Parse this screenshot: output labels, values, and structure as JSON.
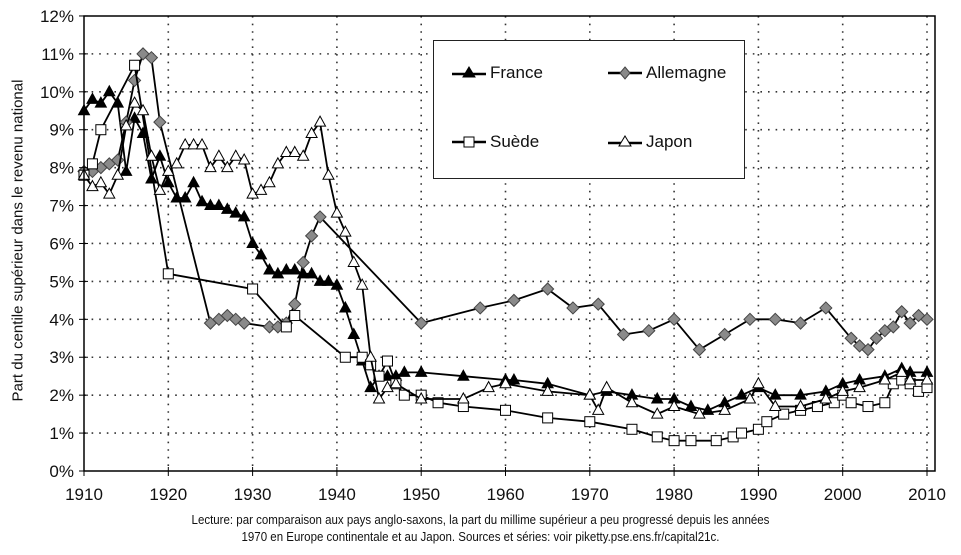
{
  "chart_data": {
    "type": "line",
    "title": "",
    "ylabel": "Part du centile supérieur dans le revenu national",
    "xlabel": "",
    "xlim": [
      1910,
      2010
    ],
    "ylim": [
      0,
      12
    ],
    "x_ticks": [
      "1910",
      "1920",
      "1930",
      "1940",
      "1950",
      "1960",
      "1970",
      "1980",
      "1990",
      "2000",
      "2010"
    ],
    "y_ticks": [
      "0%",
      "1%",
      "2%",
      "3%",
      "4%",
      "5%",
      "6%",
      "7%",
      "8%",
      "9%",
      "10%",
      "11%",
      "12%"
    ],
    "grid": true,
    "legend_position": "upper-right (inside)",
    "series": [
      {
        "name": "France",
        "marker": "filled-triangle",
        "color": "#000000",
        "points": [
          [
            1910,
            9.5
          ],
          [
            1911,
            9.8
          ],
          [
            1912,
            9.7
          ],
          [
            1913,
            10.0
          ],
          [
            1914,
            9.7
          ],
          [
            1915,
            7.9
          ],
          [
            1916,
            9.3
          ],
          [
            1917,
            8.9
          ],
          [
            1918,
            7.7
          ],
          [
            1919,
            8.3
          ],
          [
            1920,
            7.6
          ],
          [
            1921,
            7.2
          ],
          [
            1922,
            7.2
          ],
          [
            1923,
            7.6
          ],
          [
            1924,
            7.1
          ],
          [
            1925,
            7.0
          ],
          [
            1926,
            7.0
          ],
          [
            1927,
            6.9
          ],
          [
            1928,
            6.8
          ],
          [
            1929,
            6.7
          ],
          [
            1930,
            6.0
          ],
          [
            1931,
            5.7
          ],
          [
            1932,
            5.3
          ],
          [
            1933,
            5.2
          ],
          [
            1934,
            5.3
          ],
          [
            1935,
            5.3
          ],
          [
            1936,
            5.2
          ],
          [
            1937,
            5.2
          ],
          [
            1938,
            5.0
          ],
          [
            1939,
            5.0
          ],
          [
            1940,
            4.9
          ],
          [
            1941,
            4.3
          ],
          [
            1942,
            3.6
          ],
          [
            1943,
            2.9
          ],
          [
            1944,
            2.2
          ],
          [
            1945,
            2.5
          ],
          [
            1946,
            2.5
          ],
          [
            1947,
            2.5
          ],
          [
            1948,
            2.6
          ],
          [
            1950,
            2.6
          ],
          [
            1955,
            2.5
          ],
          [
            1960,
            2.4
          ],
          [
            1961,
            2.4
          ],
          [
            1965,
            2.3
          ],
          [
            1970,
            2.0
          ],
          [
            1972,
            2.1
          ],
          [
            1975,
            2.0
          ],
          [
            1978,
            1.9
          ],
          [
            1980,
            1.9
          ],
          [
            1982,
            1.7
          ],
          [
            1984,
            1.6
          ],
          [
            1986,
            1.8
          ],
          [
            1988,
            2.0
          ],
          [
            1990,
            2.2
          ],
          [
            1992,
            2.0
          ],
          [
            1995,
            2.0
          ],
          [
            1998,
            2.1
          ],
          [
            2000,
            2.3
          ],
          [
            2002,
            2.4
          ],
          [
            2005,
            2.5
          ],
          [
            2007,
            2.7
          ],
          [
            2008,
            2.6
          ],
          [
            2010,
            2.6
          ]
        ]
      },
      {
        "name": "Allemagne",
        "marker": "gray-diamond",
        "color": "#808080",
        "points": [
          [
            1910,
            7.9
          ],
          [
            1911,
            7.9
          ],
          [
            1912,
            8.0
          ],
          [
            1913,
            8.1
          ],
          [
            1914,
            8.2
          ],
          [
            1915,
            9.2
          ],
          [
            1916,
            10.3
          ],
          [
            1917,
            11.0
          ],
          [
            1918,
            10.9
          ],
          [
            1919,
            9.2
          ],
          [
            1925,
            3.9
          ],
          [
            1926,
            4.0
          ],
          [
            1927,
            4.1
          ],
          [
            1928,
            4.0
          ],
          [
            1929,
            3.9
          ],
          [
            1932,
            3.8
          ],
          [
            1933,
            3.8
          ],
          [
            1934,
            3.9
          ],
          [
            1935,
            4.4
          ],
          [
            1936,
            5.5
          ],
          [
            1937,
            6.2
          ],
          [
            1938,
            6.7
          ],
          [
            1950,
            3.9
          ],
          [
            1957,
            4.3
          ],
          [
            1961,
            4.5
          ],
          [
            1965,
            4.8
          ],
          [
            1968,
            4.3
          ],
          [
            1971,
            4.4
          ],
          [
            1974,
            3.6
          ],
          [
            1977,
            3.7
          ],
          [
            1980,
            4.0
          ],
          [
            1983,
            3.2
          ],
          [
            1986,
            3.6
          ],
          [
            1989,
            4.0
          ],
          [
            1992,
            4.0
          ],
          [
            1995,
            3.9
          ],
          [
            1998,
            4.3
          ],
          [
            2001,
            3.5
          ],
          [
            2002,
            3.3
          ],
          [
            2003,
            3.2
          ],
          [
            2004,
            3.5
          ],
          [
            2005,
            3.7
          ],
          [
            2006,
            3.8
          ],
          [
            2007,
            4.2
          ],
          [
            2008,
            3.9
          ],
          [
            2009,
            4.1
          ],
          [
            2010,
            4.0
          ]
        ]
      },
      {
        "name": "Suède",
        "marker": "open-square",
        "color": "#000000",
        "points": [
          [
            1910,
            7.8
          ],
          [
            1911,
            8.1
          ],
          [
            1912,
            9.0
          ],
          [
            1916,
            10.7
          ],
          [
            1920,
            5.2
          ],
          [
            1930,
            4.8
          ],
          [
            1934,
            3.8
          ],
          [
            1935,
            4.1
          ],
          [
            1941,
            3.0
          ],
          [
            1943,
            3.0
          ],
          [
            1944,
            2.8
          ],
          [
            1945,
            2.5
          ],
          [
            1946,
            2.9
          ],
          [
            1947,
            2.3
          ],
          [
            1948,
            2.0
          ],
          [
            1950,
            2.0
          ],
          [
            1952,
            1.8
          ],
          [
            1955,
            1.7
          ],
          [
            1960,
            1.6
          ],
          [
            1965,
            1.4
          ],
          [
            1970,
            1.3
          ],
          [
            1975,
            1.1
          ],
          [
            1978,
            0.9
          ],
          [
            1980,
            0.8
          ],
          [
            1982,
            0.8
          ],
          [
            1985,
            0.8
          ],
          [
            1987,
            0.9
          ],
          [
            1988,
            1.0
          ],
          [
            1990,
            1.1
          ],
          [
            1991,
            1.3
          ],
          [
            1993,
            1.5
          ],
          [
            1995,
            1.6
          ],
          [
            1997,
            1.7
          ],
          [
            1999,
            1.8
          ],
          [
            2000,
            2.0
          ],
          [
            2001,
            1.8
          ],
          [
            2003,
            1.7
          ],
          [
            2005,
            1.8
          ],
          [
            2006,
            2.3
          ],
          [
            2007,
            2.4
          ],
          [
            2008,
            2.3
          ],
          [
            2009,
            2.1
          ],
          [
            2010,
            2.2
          ]
        ]
      },
      {
        "name": "Japon",
        "marker": "open-triangle",
        "color": "#000000",
        "points": [
          [
            1910,
            7.8
          ],
          [
            1911,
            7.5
          ],
          [
            1912,
            7.6
          ],
          [
            1913,
            7.3
          ],
          [
            1914,
            7.8
          ],
          [
            1915,
            9.1
          ],
          [
            1916,
            9.7
          ],
          [
            1917,
            9.5
          ],
          [
            1918,
            8.3
          ],
          [
            1919,
            7.4
          ],
          [
            1920,
            7.9
          ],
          [
            1921,
            8.1
          ],
          [
            1922,
            8.6
          ],
          [
            1923,
            8.6
          ],
          [
            1924,
            8.6
          ],
          [
            1925,
            8.0
          ],
          [
            1926,
            8.3
          ],
          [
            1927,
            8.0
          ],
          [
            1928,
            8.3
          ],
          [
            1929,
            8.2
          ],
          [
            1930,
            7.3
          ],
          [
            1931,
            7.4
          ],
          [
            1932,
            7.6
          ],
          [
            1933,
            8.1
          ],
          [
            1934,
            8.4
          ],
          [
            1935,
            8.4
          ],
          [
            1936,
            8.3
          ],
          [
            1937,
            8.9
          ],
          [
            1938,
            9.2
          ],
          [
            1939,
            7.8
          ],
          [
            1940,
            6.8
          ],
          [
            1941,
            6.3
          ],
          [
            1942,
            5.5
          ],
          [
            1943,
            4.9
          ],
          [
            1944,
            3.0
          ],
          [
            1945,
            1.9
          ],
          [
            1946,
            2.2
          ],
          [
            1947,
            2.3
          ],
          [
            1950,
            1.9
          ],
          [
            1955,
            1.9
          ],
          [
            1958,
            2.2
          ],
          [
            1960,
            2.3
          ],
          [
            1965,
            2.1
          ],
          [
            1970,
            2.0
          ],
          [
            1971,
            1.6
          ],
          [
            1972,
            2.2
          ],
          [
            1975,
            1.8
          ],
          [
            1978,
            1.5
          ],
          [
            1980,
            1.7
          ],
          [
            1983,
            1.5
          ],
          [
            1986,
            1.6
          ],
          [
            1989,
            1.9
          ],
          [
            1990,
            2.3
          ],
          [
            1992,
            1.7
          ],
          [
            1995,
            1.7
          ],
          [
            1998,
            1.9
          ],
          [
            2000,
            2.1
          ],
          [
            2002,
            2.2
          ],
          [
            2005,
            2.4
          ],
          [
            2007,
            2.6
          ],
          [
            2008,
            2.4
          ],
          [
            2010,
            2.4
          ]
        ]
      }
    ],
    "caption": [
      "Lecture: par comparaison aux pays anglo-saxons, la part du millime supérieur a peu progressé depuis les années",
      "1970 en Europe continentale et au Japon. Sources et séries: voir piketty.pse.ens.fr/capital21c."
    ]
  },
  "legend": {
    "items": [
      {
        "label": "France"
      },
      {
        "label": "Allemagne"
      },
      {
        "label": "Suède"
      },
      {
        "label": "Japon"
      }
    ]
  }
}
